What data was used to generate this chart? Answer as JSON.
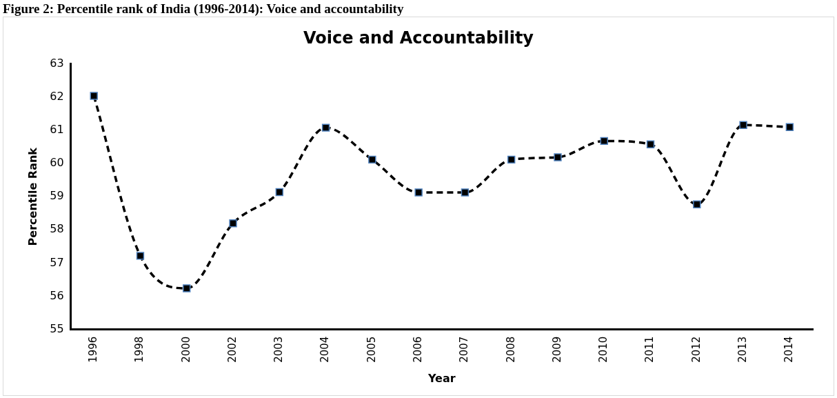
{
  "chart_data": {
    "type": "line",
    "title": "Voice and Accountability",
    "xlabel": "Year",
    "ylabel": "Percentile Rank",
    "annotations": [
      "Figure 2: Percentile rank of India (1996-2014): Voice and accountability"
    ],
    "categories": [
      "1996",
      "1998",
      "2000",
      "2002",
      "2003",
      "2004",
      "2005",
      "2006",
      "2007",
      "2008",
      "2009",
      "2010",
      "2011",
      "2012",
      "2013",
      "2014"
    ],
    "series": [
      {
        "color": "#000000",
        "values": [
          62.04,
          57.22,
          56.24,
          58.2,
          59.14,
          61.08,
          60.12,
          59.13,
          59.13,
          60.12,
          60.19,
          60.68,
          60.58,
          58.77,
          61.16,
          61.1
        ]
      }
    ],
    "ylim": [
      55,
      63
    ],
    "yticks": [
      55,
      56,
      57,
      58,
      59,
      60,
      61,
      62,
      63
    ],
    "grid": false,
    "legend": false,
    "marker": "square",
    "line_style": "dashed"
  }
}
